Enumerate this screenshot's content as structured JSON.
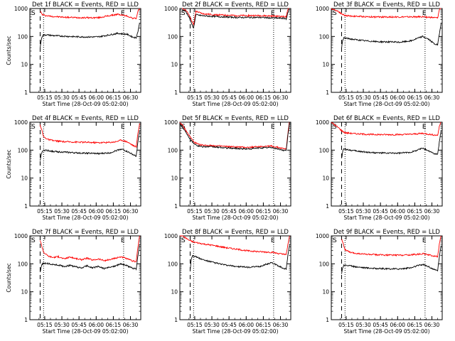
{
  "figure": {
    "background": "#ffffff",
    "axis_color": "#000000",
    "events_color": "#000000",
    "lld_color": "#ff0000",
    "x_label": "Start Time (28-Oct-09 05:02:00)",
    "y_label": "Counts/sec",
    "marker_s": "S",
    "marker_e": "E",
    "x_tick_labels": [
      "05:15",
      "05:30",
      "05:45",
      "06:00",
      "06:15",
      "06:30"
    ],
    "y_tick_labels": [
      "1",
      "10",
      "100",
      "1000"
    ]
  },
  "chart_data": [
    {
      "type": "line",
      "panel": "Det 1f",
      "title": "Det 1f BLACK = Events, RED = LLD",
      "xlabel": "Start Time (28-Oct-09 05:02:00)",
      "ylabel": "Counts/sec",
      "x_unit": "minutes after 05:02:00",
      "xlim": [
        0,
        97
      ],
      "ylim": [
        1,
        1000
      ],
      "yscale": "log",
      "x_ticks": [
        "05:15",
        "05:30",
        "05:45",
        "06:00",
        "06:15",
        "06:30"
      ],
      "markers": {
        "S_dashed_line": "05:11",
        "E_dotted_line": "06:24",
        "dotted_line": "05:14"
      },
      "series": [
        {
          "name": "LLD",
          "color": "#ff0000",
          "x": [
            9,
            11,
            14,
            20,
            30,
            40,
            50,
            60,
            70,
            77,
            80,
            85,
            90,
            93,
            94.5,
            96
          ],
          "y": [
            800,
            600,
            560,
            520,
            490,
            475,
            470,
            470,
            560,
            620,
            590,
            540,
            450,
            440,
            800,
            1000
          ]
        },
        {
          "name": "Events",
          "color": "#000000",
          "x": [
            9,
            10,
            11,
            14,
            20,
            30,
            40,
            50,
            60,
            70,
            77,
            80,
            85,
            90,
            93,
            94.5,
            96
          ],
          "y": [
            40,
            75,
            110,
            115,
            108,
            102,
            98,
            96,
            97,
            115,
            130,
            125,
            120,
            95,
            90,
            150,
            300
          ]
        }
      ]
    },
    {
      "type": "line",
      "panel": "Det 2f",
      "title": "Det 2f BLACK = Events, RED = LLD",
      "xlabel": "Start Time (28-Oct-09 05:02:00)",
      "ylabel": "Counts/sec",
      "x_unit": "minutes after 05:02:00",
      "xlim": [
        0,
        97
      ],
      "ylim": [
        1,
        1000
      ],
      "yscale": "log",
      "x_ticks": [
        "05:15",
        "05:30",
        "05:45",
        "06:00",
        "06:15",
        "06:30"
      ],
      "markers": {
        "S_dashed_line": "05:11",
        "E_dotted_line": "06:24",
        "dotted_line": "05:14"
      },
      "series": [
        {
          "name": "LLD",
          "color": "#ff0000",
          "x": [
            2,
            5,
            8,
            10,
            12,
            14,
            20,
            30,
            40,
            50,
            60,
            70,
            80,
            90,
            93,
            94.5,
            96
          ],
          "y": [
            1000,
            900,
            600,
            400,
            250,
            800,
            650,
            600,
            580,
            560,
            560,
            560,
            540,
            520,
            500,
            900,
            1300
          ]
        },
        {
          "name": "Events",
          "color": "#000000",
          "x": [
            2,
            5,
            8,
            10,
            12,
            14,
            20,
            30,
            40,
            50,
            60,
            70,
            80,
            90,
            93,
            94.5,
            96
          ],
          "y": [
            900,
            800,
            500,
            300,
            200,
            600,
            550,
            520,
            500,
            480,
            480,
            480,
            460,
            450,
            430,
            700,
            1100
          ]
        }
      ]
    },
    {
      "type": "line",
      "panel": "Det 3f",
      "title": "Det 3f BLACK = Events, RED = LLD",
      "xlabel": "Start Time (28-Oct-09 05:02:00)",
      "ylabel": "Counts/sec",
      "x_unit": "minutes after 05:02:00",
      "xlim": [
        0,
        97
      ],
      "ylim": [
        1,
        1000
      ],
      "yscale": "log",
      "x_ticks": [
        "05:15",
        "05:30",
        "05:45",
        "06:00",
        "06:15",
        "06:30"
      ],
      "markers": {
        "S_dashed_line": "05:11",
        "E_dotted_line": "06:24",
        "dotted_line": "05:14"
      },
      "series": [
        {
          "name": "LLD",
          "color": "#ff0000",
          "x": [
            0,
            3,
            6,
            9,
            12,
            20,
            30,
            40,
            50,
            60,
            70,
            80,
            90,
            93,
            94.5,
            96
          ],
          "y": [
            1000,
            900,
            800,
            650,
            560,
            530,
            510,
            500,
            500,
            500,
            500,
            510,
            470,
            460,
            900,
            1200
          ]
        },
        {
          "name": "Events",
          "color": "#000000",
          "x": [
            9,
            10,
            11,
            14,
            20,
            30,
            40,
            50,
            60,
            70,
            75,
            80,
            85,
            90,
            93,
            94.5,
            96
          ],
          "y": [
            40,
            70,
            90,
            85,
            78,
            70,
            65,
            64,
            62,
            70,
            85,
            100,
            80,
            55,
            50,
            120,
            300
          ]
        }
      ]
    },
    {
      "type": "line",
      "panel": "Det 4f",
      "title": "Det 4f BLACK = Events, RED = LLD",
      "xlabel": "Start Time (28-Oct-09 05:02:00)",
      "ylabel": "Counts/sec",
      "x_unit": "minutes after 05:02:00",
      "xlim": [
        0,
        97
      ],
      "ylim": [
        1,
        1000
      ],
      "yscale": "log",
      "x_ticks": [
        "05:15",
        "05:30",
        "05:45",
        "06:00",
        "06:15",
        "06:30"
      ],
      "markers": {
        "S_dashed_line": "05:11",
        "E_dotted_line": "06:24",
        "dotted_line": "05:14"
      },
      "series": [
        {
          "name": "LLD",
          "color": "#ff0000",
          "x": [
            9,
            10,
            12,
            16,
            20,
            30,
            40,
            50,
            60,
            70,
            75,
            80,
            85,
            90,
            93,
            94.5,
            96
          ],
          "y": [
            800,
            600,
            300,
            240,
            220,
            200,
            195,
            190,
            185,
            190,
            200,
            230,
            200,
            150,
            130,
            400,
            900
          ]
        },
        {
          "name": "Events",
          "color": "#000000",
          "x": [
            9,
            10,
            11,
            14,
            20,
            30,
            40,
            50,
            60,
            70,
            75,
            80,
            85,
            90,
            93,
            94.5,
            96
          ],
          "y": [
            40,
            70,
            95,
            100,
            90,
            85,
            80,
            78,
            75,
            80,
            95,
            110,
            90,
            70,
            60,
            200,
            500
          ]
        }
      ]
    },
    {
      "type": "line",
      "panel": "Det 5f",
      "title": "Det 5f BLACK = Events, RED = LLD",
      "xlabel": "Start Time (28-Oct-09 05:02:00)",
      "ylabel": "Counts/sec",
      "x_unit": "minutes after 05:02:00",
      "xlim": [
        0,
        97
      ],
      "ylim": [
        1,
        1000
      ],
      "yscale": "log",
      "x_ticks": [
        "05:15",
        "05:30",
        "05:45",
        "06:00",
        "06:15",
        "06:30"
      ],
      "markers": {
        "S_dashed_line": "05:11",
        "E_dotted_line": "06:24",
        "dotted_line": "05:14"
      },
      "series": [
        {
          "name": "LLD",
          "color": "#ff0000",
          "x": [
            0,
            3,
            6,
            9,
            12,
            16,
            20,
            30,
            40,
            50,
            60,
            70,
            80,
            90,
            93,
            94.5,
            96
          ],
          "y": [
            1000,
            700,
            450,
            300,
            200,
            160,
            150,
            145,
            135,
            130,
            125,
            135,
            140,
            115,
            110,
            400,
            1200
          ]
        },
        {
          "name": "Events",
          "color": "#000000",
          "x": [
            0,
            3,
            6,
            9,
            12,
            16,
            20,
            30,
            40,
            50,
            60,
            70,
            80,
            90,
            93,
            94.5,
            96
          ],
          "y": [
            900,
            600,
            400,
            250,
            180,
            140,
            135,
            130,
            120,
            115,
            110,
            120,
            125,
            100,
            95,
            350,
            1000
          ]
        }
      ]
    },
    {
      "type": "line",
      "panel": "Det 6f",
      "title": "Det 6f BLACK = Events, RED = LLD",
      "xlabel": "Start Time (28-Oct-09 05:02:00)",
      "ylabel": "Counts/sec",
      "x_unit": "minutes after 05:02:00",
      "xlim": [
        0,
        97
      ],
      "ylim": [
        1,
        1000
      ],
      "yscale": "log",
      "x_ticks": [
        "05:15",
        "05:30",
        "05:45",
        "06:00",
        "06:15",
        "06:30"
      ],
      "markers": {
        "S_dashed_line": "05:11",
        "E_dotted_line": "06:24",
        "dotted_line": "05:14"
      },
      "series": [
        {
          "name": "LLD",
          "color": "#ff0000",
          "x": [
            0,
            3,
            6,
            9,
            12,
            20,
            30,
            40,
            50,
            60,
            70,
            80,
            90,
            93,
            94.5,
            96
          ],
          "y": [
            1000,
            800,
            650,
            500,
            420,
            390,
            370,
            360,
            360,
            360,
            370,
            400,
            350,
            340,
            700,
            1100
          ]
        },
        {
          "name": "Events",
          "color": "#000000",
          "x": [
            9,
            10,
            11,
            14,
            20,
            30,
            40,
            50,
            60,
            70,
            75,
            80,
            85,
            90,
            93,
            94.5,
            96
          ],
          "y": [
            50,
            90,
            110,
            105,
            95,
            85,
            80,
            78,
            78,
            85,
            100,
            120,
            95,
            75,
            70,
            200,
            500
          ]
        }
      ]
    },
    {
      "type": "line",
      "panel": "Det 7f",
      "title": "Det 7f BLACK = Events, RED = LLD",
      "xlabel": "Start Time (28-Oct-09 05:02:00)",
      "ylabel": "Counts/sec",
      "x_unit": "minutes after 05:02:00",
      "xlim": [
        0,
        97
      ],
      "ylim": [
        1,
        1000
      ],
      "yscale": "log",
      "x_ticks": [
        "05:15",
        "05:30",
        "05:45",
        "06:00",
        "06:15",
        "06:30"
      ],
      "markers": {
        "S_dashed_line": "05:11",
        "E_dotted_line": "06:24",
        "dotted_line": "05:14"
      },
      "series": [
        {
          "name": "LLD",
          "color": "#ff0000",
          "x": [
            9,
            10,
            12,
            16,
            20,
            25,
            30,
            35,
            40,
            45,
            50,
            55,
            60,
            65,
            70,
            75,
            80,
            85,
            90,
            93,
            94.5,
            96
          ],
          "y": [
            700,
            500,
            260,
            190,
            170,
            180,
            150,
            175,
            155,
            140,
            160,
            135,
            150,
            130,
            140,
            160,
            180,
            150,
            125,
            120,
            400,
            1000
          ]
        },
        {
          "name": "Events",
          "color": "#000000",
          "x": [
            9,
            10,
            11,
            14,
            20,
            25,
            30,
            35,
            40,
            45,
            50,
            55,
            60,
            65,
            70,
            75,
            80,
            85,
            90,
            93,
            94.5,
            96
          ],
          "y": [
            50,
            80,
            100,
            105,
            95,
            90,
            80,
            88,
            78,
            70,
            85,
            72,
            80,
            68,
            75,
            85,
            100,
            85,
            70,
            65,
            200,
            500
          ]
        }
      ]
    },
    {
      "type": "line",
      "panel": "Det 8f",
      "title": "Det 8f BLACK = Events, RED = LLD",
      "xlabel": "Start Time (28-Oct-09 05:02:00)",
      "ylabel": "Counts/sec",
      "x_unit": "minutes after 05:02:00",
      "xlim": [
        0,
        97
      ],
      "ylim": [
        1,
        1000
      ],
      "yscale": "log",
      "x_ticks": [
        "05:15",
        "05:30",
        "05:45",
        "06:00",
        "06:15",
        "06:30"
      ],
      "markers": {
        "S_dashed_line": "05:11",
        "E_dotted_line": "06:24",
        "dotted_line": "05:14"
      },
      "series": [
        {
          "name": "LLD",
          "color": "#ff0000",
          "x": [
            0,
            4,
            8,
            12,
            20,
            30,
            40,
            50,
            60,
            70,
            80,
            90,
            93,
            94.5,
            96
          ],
          "y": [
            1200,
            900,
            700,
            600,
            520,
            450,
            380,
            330,
            290,
            270,
            260,
            220,
            210,
            500,
            1000
          ]
        },
        {
          "name": "Events",
          "color": "#000000",
          "x": [
            9,
            10,
            11,
            14,
            20,
            30,
            40,
            50,
            60,
            70,
            75,
            80,
            85,
            90,
            93,
            94.5,
            96
          ],
          "y": [
            60,
            150,
            200,
            180,
            140,
            110,
            90,
            80,
            75,
            80,
            95,
            110,
            90,
            70,
            65,
            200,
            500
          ]
        }
      ]
    },
    {
      "type": "line",
      "panel": "Det 9f",
      "title": "Det 9f BLACK = Events, RED = LLD",
      "xlabel": "Start Time (28-Oct-09 05:02:00)",
      "ylabel": "Counts/sec",
      "x_unit": "minutes after 05:02:00",
      "xlim": [
        0,
        97
      ],
      "ylim": [
        1,
        1000
      ],
      "yscale": "log",
      "x_ticks": [
        "05:15",
        "05:30",
        "05:45",
        "06:00",
        "06:15",
        "06:30"
      ],
      "markers": {
        "S_dashed_line": "05:11",
        "E_dotted_line": "06:24",
        "dotted_line": "05:14"
      },
      "series": [
        {
          "name": "LLD",
          "color": "#ff0000",
          "x": [
            9,
            10,
            12,
            16,
            20,
            30,
            40,
            50,
            60,
            70,
            80,
            90,
            93,
            94.5,
            96
          ],
          "y": [
            800,
            600,
            320,
            260,
            240,
            220,
            210,
            205,
            205,
            210,
            230,
            190,
            180,
            500,
            1000
          ]
        },
        {
          "name": "Events",
          "color": "#000000",
          "x": [
            9,
            10,
            11,
            14,
            20,
            30,
            40,
            50,
            60,
            70,
            75,
            80,
            85,
            90,
            93,
            94.5,
            96
          ],
          "y": [
            45,
            75,
            90,
            88,
            80,
            72,
            68,
            66,
            66,
            72,
            85,
            95,
            80,
            62,
            58,
            180,
            450
          ]
        }
      ]
    }
  ]
}
